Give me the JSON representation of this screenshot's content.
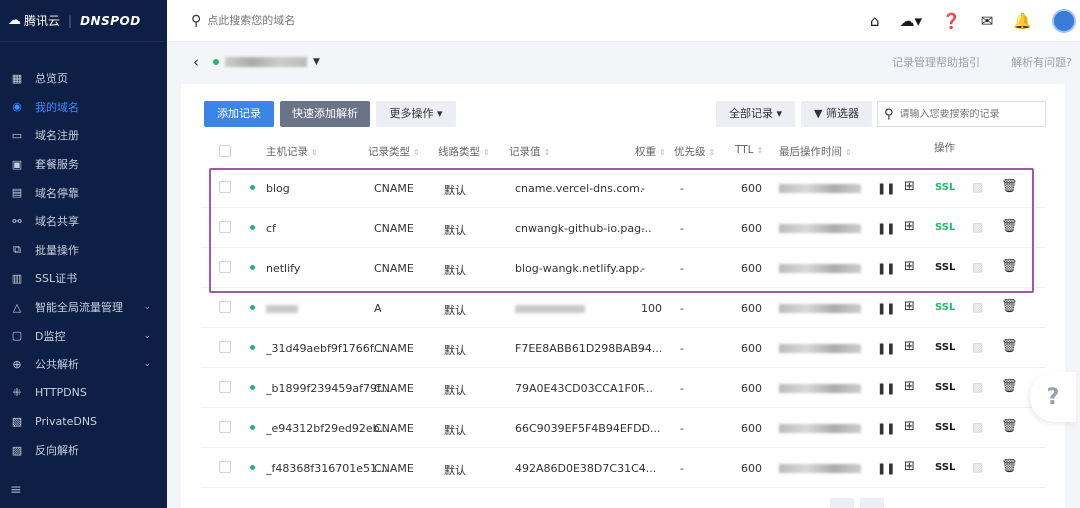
{
  "sidebar": {
    "brand_cn": "腾讯云",
    "brand_dns": "DNSPOD",
    "items": [
      {
        "label": "总览页",
        "icon": "grid-icon",
        "active": false
      },
      {
        "label": "我的域名",
        "icon": "globe-icon",
        "active": true
      },
      {
        "label": "域名注册",
        "icon": "register-icon",
        "active": false
      },
      {
        "label": "套餐服务",
        "icon": "package-icon",
        "active": false
      },
      {
        "label": "域名停靠",
        "icon": "parking-icon",
        "active": false
      },
      {
        "label": "域名共享",
        "icon": "share-icon",
        "active": false
      },
      {
        "label": "批量操作",
        "icon": "batch-icon",
        "active": false
      },
      {
        "label": "SSL证书",
        "icon": "certificate-icon",
        "active": false
      },
      {
        "label": "智能全局流量管理",
        "icon": "traffic-icon",
        "active": false,
        "expandable": true
      },
      {
        "label": "D监控",
        "icon": "monitor-icon",
        "active": false,
        "expandable": true
      },
      {
        "label": "公共解析",
        "icon": "public-dns-icon",
        "active": false,
        "expandable": true
      },
      {
        "label": "HTTPDNS",
        "icon": "httpdns-icon",
        "active": false
      },
      {
        "label": "PrivateDNS",
        "icon": "private-dns-icon",
        "active": false
      },
      {
        "label": "反向解析",
        "icon": "reverse-icon",
        "active": false
      }
    ]
  },
  "topbar": {
    "search_placeholder": "点此搜索您的域名"
  },
  "subheader": {
    "help_link": "记录管理帮助指引",
    "problem_link": "解析有问题?"
  },
  "toolbar": {
    "add_record": "添加记录",
    "quick_add": "快速添加解析",
    "more_ops": "更多操作",
    "all_records": "全部记录",
    "filter": "筛选器",
    "search_placeholder": "请输入您要搜索的记录"
  },
  "table": {
    "headers": {
      "host": "主机记录",
      "type": "记录类型",
      "line": "线路类型",
      "value": "记录值",
      "weight": "权重",
      "priority": "优先级",
      "ttl": "TTL",
      "last_modified": "最后操作时间",
      "actions": "操作"
    },
    "rows": [
      {
        "host": "blog",
        "type": "CNAME",
        "line": "默认",
        "value": "cname.vercel-dns.com.",
        "weight": "-",
        "priority": "-",
        "ttl": "600",
        "ssl": "SSL",
        "ssl_green": true
      },
      {
        "host": "cf",
        "type": "CNAME",
        "line": "默认",
        "value": "cnwangk-github-io.pag...",
        "weight": "-",
        "priority": "-",
        "ttl": "600",
        "ssl": "SSL",
        "ssl_green": true
      },
      {
        "host": "netlify",
        "type": "CNAME",
        "line": "默认",
        "value": "blog-wangk.netlify.app.",
        "weight": "-",
        "priority": "-",
        "ttl": "600",
        "ssl": "SSL",
        "ssl_green": false
      },
      {
        "host": "",
        "type": "A",
        "line": "默认",
        "value": "",
        "weight": "100",
        "priority": "-",
        "ttl": "600",
        "ssl": "SSL",
        "ssl_green": true
      },
      {
        "host": "_31d49aebf9f1766f...",
        "type": "CNAME",
        "line": "默认",
        "value": "F7EE8ABB61D298BAB94...",
        "weight": "-",
        "priority": "-",
        "ttl": "600",
        "ssl": "SSL",
        "ssl_green": false
      },
      {
        "host": "_b1899f239459af79f...",
        "type": "CNAME",
        "line": "默认",
        "value": "79A0E43CD03CCA1F0F...",
        "weight": "-",
        "priority": "-",
        "ttl": "600",
        "ssl": "SSL",
        "ssl_green": false
      },
      {
        "host": "_e94312bf29ed92eb...",
        "type": "CNAME",
        "line": "默认",
        "value": "66C9039EF5F4B94EFDD...",
        "weight": "-",
        "priority": "-",
        "ttl": "600",
        "ssl": "SSL",
        "ssl_green": false
      },
      {
        "host": "_f48368f316701e51...",
        "type": "CNAME",
        "line": "默认",
        "value": "492A86D0E38D7C31C4...",
        "weight": "-",
        "priority": "-",
        "ttl": "600",
        "ssl": "SSL",
        "ssl_green": false
      }
    ]
  },
  "float_help": "?",
  "colors": {
    "sidebar_bg": "#0d1f44",
    "primary": "#3b84e8",
    "status_green": "#2ab56e",
    "highlight_border": "#9c5aa9"
  }
}
